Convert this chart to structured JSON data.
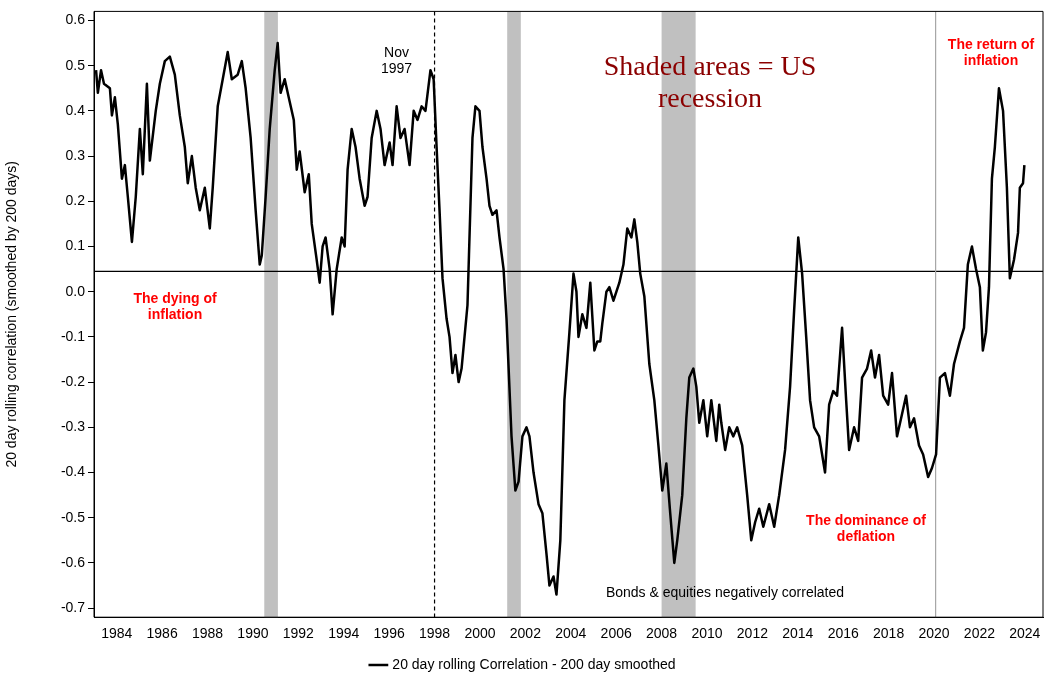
{
  "chart_data": {
    "type": "line",
    "ylabel": "20 day rolling correlation (smoothed by 200 days)",
    "xlim": [
      1983,
      2024.8
    ],
    "xticks": [
      1984,
      1986,
      1988,
      1990,
      1992,
      1994,
      1996,
      1998,
      2000,
      2002,
      2004,
      2006,
      2008,
      2010,
      2012,
      2014,
      2016,
      2018,
      2020,
      2022,
      2024
    ],
    "ylim": [
      -0.72,
      0.62
    ],
    "yticks": [
      -0.7,
      -0.6,
      -0.5,
      -0.4,
      -0.3,
      -0.2,
      -0.1,
      {
        "value": 0,
        "label": "0.0"
      },
      0.1,
      0.2,
      0.3,
      0.4,
      0.5,
      0.6
    ],
    "grid": false,
    "legend": "bottom",
    "marker": "none",
    "line_style": "solid",
    "series": [
      {
        "name": "20 day rolling Correlation - 200 day smoothed",
        "color": "#000000",
        "x": [
          1983.09,
          1983.17,
          1983.31,
          1983.44,
          1983.7,
          1983.79,
          1983.92,
          1984.05,
          1984.23,
          1984.36,
          1984.49,
          1984.67,
          1984.84,
          1985.02,
          1985.15,
          1985.33,
          1985.46,
          1985.72,
          1985.9,
          1986.12,
          1986.34,
          1986.56,
          1986.78,
          1987.0,
          1987.13,
          1987.31,
          1987.48,
          1987.66,
          1987.88,
          1988.1,
          1988.23,
          1988.45,
          1988.67,
          1988.89,
          1989.07,
          1989.33,
          1989.51,
          1989.68,
          1989.9,
          1990.12,
          1990.3,
          1990.39,
          1990.56,
          1990.74,
          1990.96,
          1991.09,
          1991.22,
          1991.4,
          1991.62,
          1991.8,
          1991.93,
          1992.06,
          1992.28,
          1992.46,
          1992.59,
          1992.81,
          1992.94,
          1993.07,
          1993.2,
          1993.38,
          1993.51,
          1993.69,
          1993.91,
          1994.04,
          1994.17,
          1994.35,
          1994.52,
          1994.7,
          1994.92,
          1995.05,
          1995.23,
          1995.45,
          1995.62,
          1995.8,
          1996.02,
          1996.15,
          1996.33,
          1996.5,
          1996.68,
          1996.9,
          1997.08,
          1997.25,
          1997.43,
          1997.6,
          1997.82,
          1997.96,
          1998.09,
          1998.22,
          1998.35,
          1998.53,
          1998.66,
          1998.79,
          1998.92,
          1999.06,
          1999.19,
          1999.45,
          1999.67,
          1999.8,
          1999.98,
          2000.11,
          2000.29,
          2000.42,
          2000.55,
          2000.73,
          2000.86,
          2001.04,
          2001.17,
          2001.39,
          2001.56,
          2001.7,
          2001.87,
          2002.05,
          2002.18,
          2002.36,
          2002.58,
          2002.75,
          2002.93,
          2003.06,
          2003.24,
          2003.37,
          2003.54,
          2003.72,
          2003.94,
          2004.12,
          2004.25,
          2004.34,
          2004.51,
          2004.69,
          2004.86,
          2005.04,
          2005.17,
          2005.3,
          2005.39,
          2005.57,
          2005.7,
          2005.88,
          2006.14,
          2006.32,
          2006.49,
          2006.67,
          2006.8,
          2006.93,
          2007.06,
          2007.24,
          2007.46,
          2007.68,
          2007.86,
          2008.03,
          2008.21,
          2008.38,
          2008.56,
          2008.69,
          2008.91,
          2009.09,
          2009.22,
          2009.4,
          2009.53,
          2009.66,
          2009.84,
          2010.01,
          2010.19,
          2010.41,
          2010.54,
          2010.63,
          2010.8,
          2010.98,
          2011.16,
          2011.33,
          2011.55,
          2011.77,
          2011.95,
          2012.12,
          2012.3,
          2012.48,
          2012.74,
          2012.96,
          2013.18,
          2013.44,
          2013.66,
          2013.84,
          2014.02,
          2014.19,
          2014.37,
          2014.54,
          2014.72,
          2014.94,
          2015.2,
          2015.38,
          2015.56,
          2015.73,
          2015.95,
          2016.13,
          2016.26,
          2016.48,
          2016.66,
          2016.83,
          2017.05,
          2017.23,
          2017.4,
          2017.58,
          2017.76,
          2017.98,
          2018.15,
          2018.37,
          2018.55,
          2018.77,
          2018.94,
          2019.12,
          2019.34,
          2019.52,
          2019.74,
          2019.91,
          2020.09,
          2020.26,
          2020.48,
          2020.7,
          2020.88,
          2021.14,
          2021.32,
          2021.49,
          2021.67,
          2021.85,
          2022.02,
          2022.15,
          2022.29,
          2022.42,
          2022.55,
          2022.68,
          2022.86,
          2023.04,
          2023.21,
          2023.34,
          2023.52,
          2023.7,
          2023.78,
          2023.92,
          2023.98
        ],
        "values": [
          0.49,
          0.44,
          0.49,
          0.46,
          0.45,
          0.39,
          0.43,
          0.37,
          0.25,
          0.28,
          0.21,
          0.11,
          0.21,
          0.36,
          0.26,
          0.46,
          0.29,
          0.4,
          0.46,
          0.51,
          0.52,
          0.48,
          0.39,
          0.32,
          0.24,
          0.3,
          0.23,
          0.18,
          0.23,
          0.14,
          0.23,
          0.41,
          0.47,
          0.53,
          0.47,
          0.48,
          0.51,
          0.45,
          0.34,
          0.18,
          0.06,
          0.08,
          0.21,
          0.36,
          0.49,
          0.55,
          0.44,
          0.47,
          0.42,
          0.38,
          0.27,
          0.31,
          0.22,
          0.26,
          0.15,
          0.07,
          0.02,
          0.1,
          0.12,
          0.05,
          -0.05,
          0.05,
          0.12,
          0.1,
          0.27,
          0.36,
          0.32,
          0.25,
          0.19,
          0.21,
          0.34,
          0.4,
          0.36,
          0.28,
          0.33,
          0.28,
          0.41,
          0.34,
          0.36,
          0.28,
          0.4,
          0.38,
          0.41,
          0.4,
          0.49,
          0.47,
          0.32,
          0.18,
          0.03,
          -0.06,
          -0.1,
          -0.18,
          -0.14,
          -0.2,
          -0.17,
          -0.03,
          0.34,
          0.41,
          0.4,
          0.32,
          0.25,
          0.19,
          0.17,
          0.18,
          0.12,
          0.05,
          -0.06,
          -0.32,
          -0.44,
          -0.42,
          -0.32,
          -0.3,
          -0.32,
          -0.4,
          -0.47,
          -0.49,
          -0.58,
          -0.65,
          -0.63,
          -0.67,
          -0.55,
          -0.24,
          -0.09,
          0.04,
          0.0,
          -0.1,
          -0.05,
          -0.08,
          0.02,
          -0.13,
          -0.11,
          -0.11,
          -0.07,
          0.0,
          0.01,
          -0.02,
          0.02,
          0.06,
          0.14,
          0.12,
          0.16,
          0.11,
          0.04,
          -0.01,
          -0.16,
          -0.24,
          -0.34,
          -0.44,
          -0.38,
          -0.49,
          -0.6,
          -0.55,
          -0.45,
          -0.28,
          -0.19,
          -0.17,
          -0.21,
          -0.29,
          -0.24,
          -0.32,
          -0.24,
          -0.33,
          -0.25,
          -0.29,
          -0.35,
          -0.3,
          -0.32,
          -0.3,
          -0.34,
          -0.45,
          -0.55,
          -0.51,
          -0.48,
          -0.52,
          -0.47,
          -0.52,
          -0.45,
          -0.35,
          -0.21,
          -0.04,
          0.12,
          0.04,
          -0.1,
          -0.24,
          -0.3,
          -0.32,
          -0.4,
          -0.25,
          -0.22,
          -0.23,
          -0.08,
          -0.24,
          -0.35,
          -0.3,
          -0.33,
          -0.19,
          -0.17,
          -0.13,
          -0.19,
          -0.14,
          -0.23,
          -0.25,
          -0.18,
          -0.32,
          -0.28,
          -0.23,
          -0.3,
          -0.28,
          -0.34,
          -0.36,
          -0.41,
          -0.39,
          -0.36,
          -0.19,
          -0.18,
          -0.23,
          -0.16,
          -0.11,
          -0.08,
          0.06,
          0.1,
          0.05,
          0.01,
          -0.13,
          -0.09,
          0.01,
          0.25,
          0.32,
          0.45,
          0.4,
          0.23,
          0.03,
          0.07,
          0.13,
          0.23,
          0.24,
          0.28
        ]
      }
    ],
    "ref_lines": [
      {
        "axis": "y",
        "value": 0.045,
        "color": "#000000",
        "line_style": "solid"
      },
      {
        "axis": "x",
        "value": 1998.0,
        "label": "Nov 1997",
        "color": "#000000",
        "line_style": "dashed"
      },
      {
        "axis": "x",
        "value": 2020.07,
        "color": "#a6a6a6",
        "line_style": "solid"
      }
    ],
    "bands": [
      {
        "axis": "x",
        "from": 1990.5,
        "to": 1991.1,
        "color": "#c0c0c0"
      },
      {
        "axis": "x",
        "from": 2001.2,
        "to": 2001.8,
        "color": "#c0c0c0"
      },
      {
        "axis": "x",
        "from": 2008.0,
        "to": 2009.5,
        "color": "#c0c0c0"
      }
    ],
    "annotations": [
      "Shaded areas = US recession",
      "The dying of inflation",
      "The return of inflation",
      "The dominance of deflation",
      "Bonds & equities negatively correlated"
    ]
  }
}
